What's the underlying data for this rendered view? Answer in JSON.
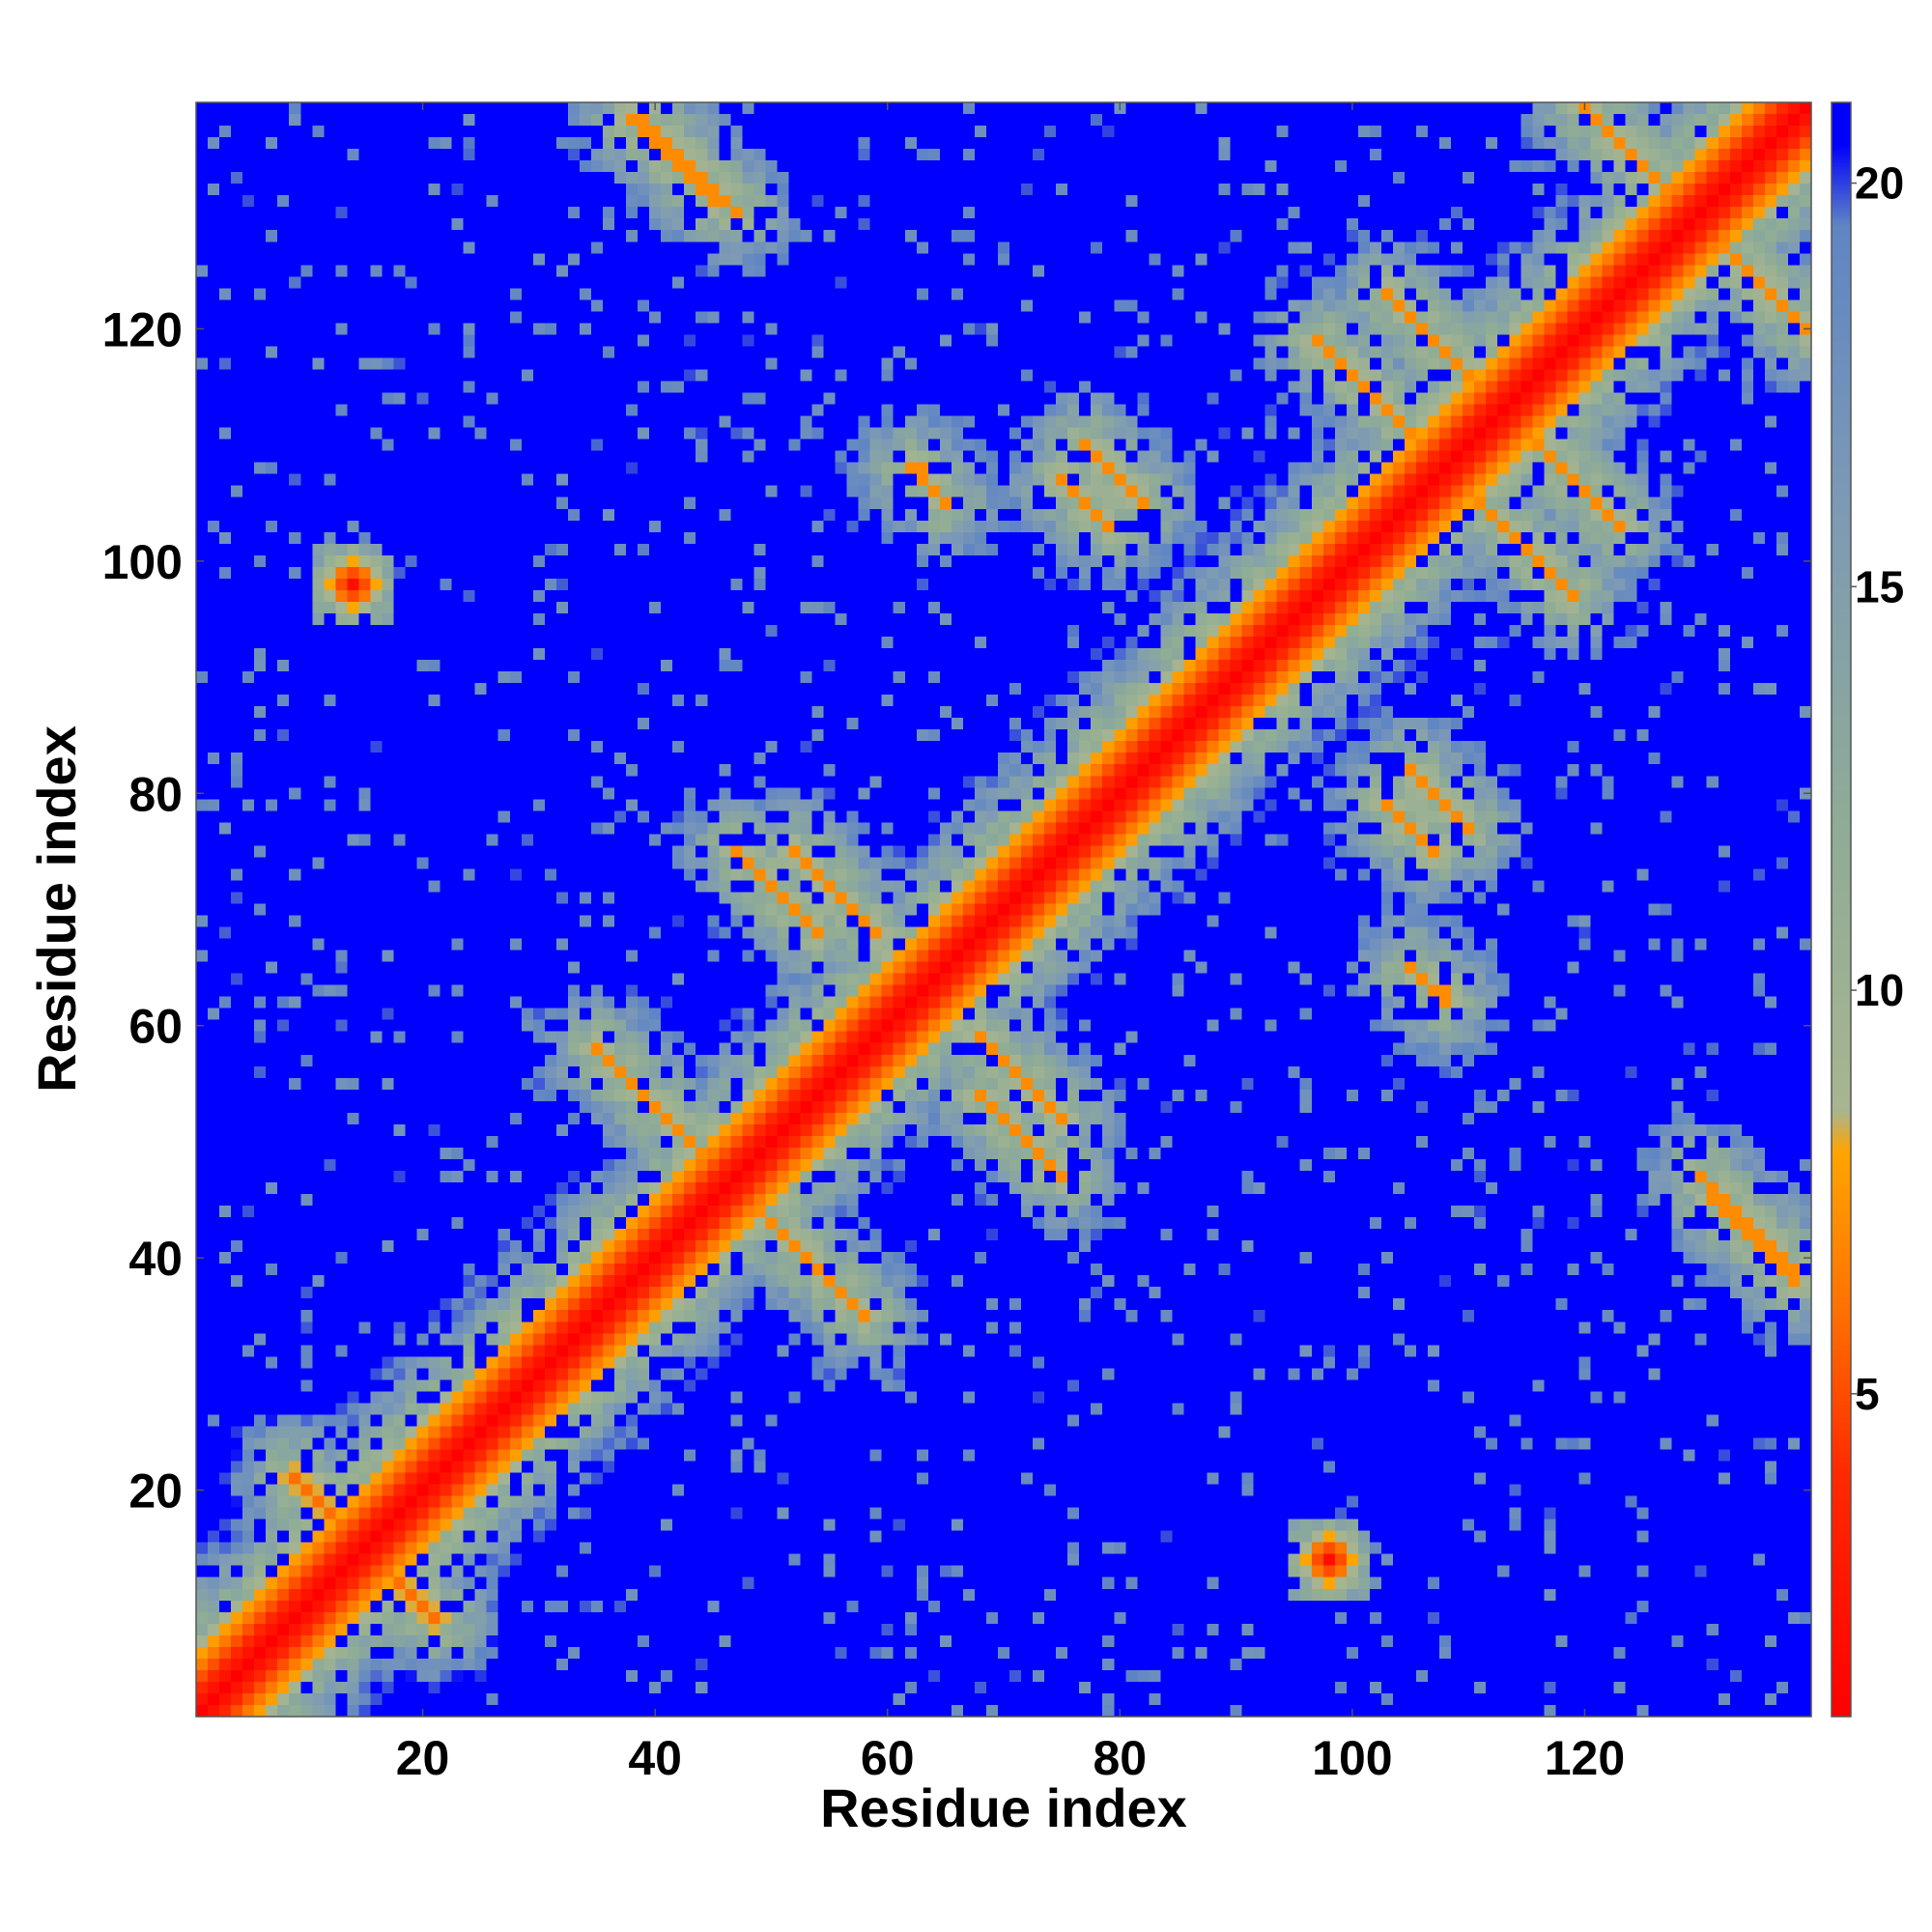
{
  "chart_data": {
    "type": "heatmap",
    "title": "",
    "xlabel": "Residue index",
    "ylabel": "Residue index",
    "n_residues": 139,
    "x_range": [
      1,
      139
    ],
    "y_range": [
      1,
      139
    ],
    "x_ticks": [
      20,
      40,
      60,
      80,
      100,
      120
    ],
    "y_ticks": [
      20,
      40,
      60,
      80,
      100,
      120
    ],
    "colorbar": {
      "ticks": [
        5,
        10,
        15,
        20
      ],
      "range": [
        1,
        21
      ],
      "placement": "right",
      "stops": [
        {
          "value": 1,
          "color": "#ff0000"
        },
        {
          "value": 4,
          "color": "#ff2a00"
        },
        {
          "value": 6,
          "color": "#ff7000"
        },
        {
          "value": 8,
          "color": "#ffa500"
        },
        {
          "value": 8.5,
          "color": "#a8b590"
        },
        {
          "value": 12,
          "color": "#8fac96"
        },
        {
          "value": 16,
          "color": "#7d9ab5"
        },
        {
          "value": 19.5,
          "color": "#5f85c4"
        },
        {
          "value": 20.5,
          "color": "#0000ff"
        },
        {
          "value": 21,
          "color": "#0000ff"
        }
      ]
    },
    "diagonal_value": 1,
    "background_value": 21,
    "contact_bands": [
      {
        "i_start": 1,
        "j_start": 1,
        "direction": "parallel",
        "length": 139,
        "value": 6
      },
      {
        "i_start": 10,
        "j_start": 20,
        "direction": "antiparallel",
        "length": 12,
        "value": 6
      },
      {
        "i_start": 39,
        "j_start": 138,
        "direction": "antiparallel",
        "length": 9,
        "value": 7
      },
      {
        "i_start": 103,
        "j_start": 123,
        "direction": "antiparallel",
        "length": 15,
        "value": 7
      },
      {
        "i_start": 108,
        "j_start": 108,
        "direction": "antiparallel",
        "length": 12,
        "value": 7
      },
      {
        "i_start": 120,
        "j_start": 139,
        "direction": "antiparallel",
        "length": 18,
        "value": 7
      },
      {
        "i_start": 131,
        "j_start": 45,
        "direction": "antiparallel",
        "length": 8,
        "value": 7
      },
      {
        "i_start": 48,
        "j_start": 45,
        "direction": "antiparallel",
        "length": 11,
        "value": 7
      },
      {
        "i_start": 37,
        "j_start": 56,
        "direction": "antiparallel",
        "length": 10,
        "value": 7
      },
      {
        "i_start": 52,
        "j_start": 75,
        "direction": "antiparallel",
        "length": 8,
        "value": 7
      },
      {
        "i_start": 68,
        "j_start": 54,
        "direction": "antiparallel",
        "length": 8,
        "value": 7
      },
      {
        "i_start": 105,
        "j_start": 82,
        "direction": "antiparallel",
        "length": 6,
        "value": 7
      },
      {
        "i_start": 62,
        "j_start": 108,
        "direction": "antiparallel",
        "length": 4,
        "value": 7
      },
      {
        "i_start": 75,
        "j_start": 107,
        "direction": "antiparallel",
        "length": 5,
        "value": 7
      }
    ],
    "contact_spots": [
      {
        "i": 14,
        "j": 98,
        "value": 2
      },
      {
        "i": 98,
        "j": 14,
        "value": 2
      },
      {
        "i": 108,
        "j": 63,
        "value": 7
      },
      {
        "i": 84,
        "j": 88,
        "value": 7
      },
      {
        "i": 93,
        "j": 96,
        "value": 7
      }
    ]
  }
}
